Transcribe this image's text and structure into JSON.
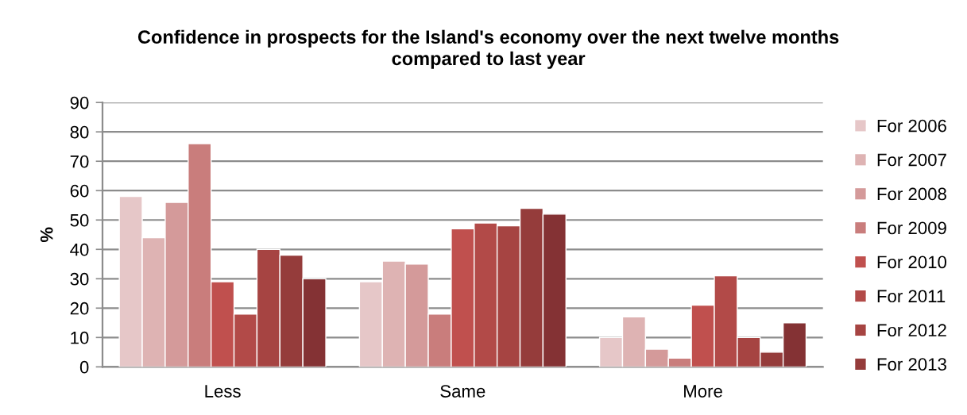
{
  "chart_data": {
    "type": "bar",
    "title": "Confidence in prospects for the Island's economy over the next twelve months compared to last year",
    "ylabel": "%",
    "categories": [
      "Less",
      "Same",
      "More"
    ],
    "series": [
      {
        "name": "For 2006",
        "color": "#e6c7c8",
        "values": [
          58,
          29,
          10
        ]
      },
      {
        "name": "For 2007",
        "color": "#deb3b3",
        "values": [
          44,
          36,
          17
        ]
      },
      {
        "name": "For 2008",
        "color": "#d49a9a",
        "values": [
          56,
          35,
          6
        ]
      },
      {
        "name": "For 2009",
        "color": "#c97d7c",
        "values": [
          76,
          18,
          3
        ]
      },
      {
        "name": "For 2010",
        "color": "#c0504e",
        "values": [
          29,
          47,
          21
        ]
      },
      {
        "name": "For 2011",
        "color": "#b24a48",
        "values": [
          18,
          49,
          31
        ]
      },
      {
        "name": "For 2012",
        "color": "#a64442",
        "values": [
          40,
          48,
          10
        ]
      },
      {
        "name": "For 2013",
        "color": "#953c3b",
        "values": [
          38,
          54,
          5
        ]
      },
      {
        "color": "#843234",
        "values": [
          30,
          52,
          15
        ]
      }
    ],
    "ylim": [
      0,
      90
    ],
    "yticks": [
      0,
      10,
      20,
      30,
      40,
      50,
      60,
      70,
      80,
      90
    ],
    "grid": "y",
    "legend": "right"
  }
}
